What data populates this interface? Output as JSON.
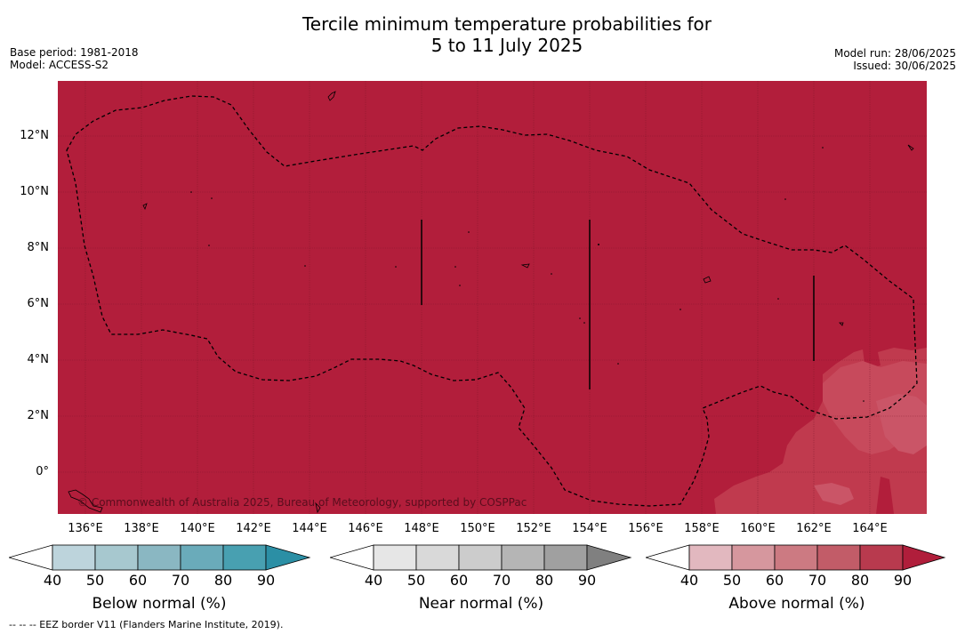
{
  "title": {
    "line1": "Tercile minimum temperature probabilities for",
    "line2": "5 to 11 July 2025"
  },
  "meta_left": {
    "base_period": "Base period: 1981-2018",
    "model": "Model: ACCESS-S2"
  },
  "meta_right": {
    "model_run": "Model run: 28/06/2025",
    "issued": "Issued: 30/06/2025"
  },
  "map": {
    "dominant_color": "#B21E3B",
    "secondary_color": "#C03A4E",
    "lat_labels": [
      "12°N",
      "10°N",
      "8°N",
      "6°N",
      "4°N",
      "2°N",
      "0°"
    ],
    "lon_labels": [
      "136°E",
      "138°E",
      "140°E",
      "142°E",
      "144°E",
      "146°E",
      "148°E",
      "150°E",
      "152°E",
      "154°E",
      "156°E",
      "158°E",
      "160°E",
      "162°E",
      "164°E"
    ],
    "copyright": "© Commonwealth of Australia 2025, Bureau of Meteorology, supported by COSPPac"
  },
  "colorbars": [
    {
      "name": "below",
      "title": "Below normal (%)",
      "ticks": [
        "40",
        "50",
        "60",
        "70",
        "80",
        "90"
      ],
      "colors": [
        "#ffffff",
        "#bdd4dc",
        "#a7c8cf",
        "#8ab7c2",
        "#6aabba",
        "#48a0b1",
        "#2b8fa5"
      ]
    },
    {
      "name": "near",
      "title": "Near normal (%)",
      "ticks": [
        "40",
        "50",
        "60",
        "70",
        "80",
        "90"
      ],
      "colors": [
        "#ffffff",
        "#e6e6e6",
        "#d9d9d9",
        "#cccccc",
        "#b5b5b5",
        "#a0a0a0",
        "#808080"
      ]
    },
    {
      "name": "above",
      "title": "Above normal (%)",
      "ticks": [
        "40",
        "50",
        "60",
        "70",
        "80",
        "90"
      ],
      "colors": [
        "#ffffff",
        "#e2b8bf",
        "#d6979e",
        "#cc7a82",
        "#c25c68",
        "#b83a4e",
        "#b01e3b"
      ]
    }
  ],
  "footnote": "--  --  -- EEZ border V11 (Flanders Marine Institute, 2019)."
}
